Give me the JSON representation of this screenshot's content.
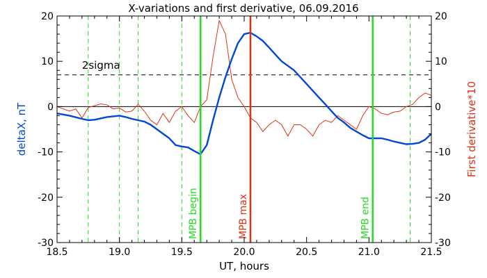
{
  "chart_data": {
    "type": "line",
    "title": "X-variations and first derivative, 06.09.2016",
    "xlabel": "UT, hours",
    "ylabel_left": "deltaX, nT",
    "ylabel_right": "First derivative*10",
    "xlim": [
      18.5,
      21.5
    ],
    "ylim": [
      -30,
      20
    ],
    "x_ticks": [
      "18.5",
      "19.0",
      "19.5",
      "20.0",
      "20.5",
      "21.0",
      "21.5"
    ],
    "x_tick_values": [
      18.5,
      19.0,
      19.5,
      20.0,
      20.5,
      21.0,
      21.5
    ],
    "y_ticks": [
      "20",
      "10",
      "0",
      "-10",
      "-20",
      "-30"
    ],
    "y_tick_values": [
      20,
      10,
      0,
      -10,
      -20,
      -30
    ],
    "sigma_label": "2sigma",
    "sigma_level": 7,
    "zero_level": 0,
    "colors": {
      "deltaX": "#0047d6",
      "derivative": "#e03010",
      "mpb": "#22dd22",
      "mpb_max": "#e03010",
      "dashed_green": "#22dd22",
      "text_blue": "#0047d6",
      "text_red": "#e03010"
    },
    "series": [
      {
        "name": "deltaX, nT",
        "x": [
          18.5,
          18.6,
          18.7,
          18.75,
          18.8,
          18.9,
          19.0,
          19.05,
          19.1,
          19.15,
          19.2,
          19.25,
          19.3,
          19.35,
          19.4,
          19.45,
          19.5,
          19.55,
          19.6,
          19.65,
          19.7,
          19.75,
          19.8,
          19.85,
          19.9,
          19.95,
          20.0,
          20.05,
          20.1,
          20.15,
          20.2,
          20.25,
          20.3,
          20.35,
          20.4,
          20.45,
          20.5,
          20.55,
          20.6,
          20.65,
          20.7,
          20.75,
          20.8,
          20.85,
          20.9,
          20.95,
          21.0,
          21.05,
          21.1,
          21.15,
          21.2,
          21.25,
          21.3,
          21.35,
          21.4,
          21.45,
          21.5
        ],
        "values": [
          -1.5,
          -2,
          -2.7,
          -3,
          -2.9,
          -2.3,
          -2,
          -2.3,
          -2.7,
          -3,
          -3.3,
          -4,
          -5,
          -6,
          -7,
          -8.5,
          -8.8,
          -9,
          -9.8,
          -10.5,
          -8.5,
          -3,
          2,
          6.5,
          10.5,
          14,
          16,
          16.3,
          15.5,
          14.5,
          13,
          11.5,
          10,
          9,
          8,
          6.5,
          5,
          3.5,
          2,
          0.5,
          -1,
          -2.5,
          -3.5,
          -4.7,
          -5.5,
          -6.3,
          -7,
          -7,
          -7,
          -7.3,
          -7.7,
          -8,
          -8.3,
          -8.2,
          -8,
          -7.3,
          -6
        ]
      },
      {
        "name": "First derivative*10",
        "x": [
          18.5,
          18.55,
          18.6,
          18.65,
          18.7,
          18.75,
          18.8,
          18.85,
          18.9,
          18.95,
          19.0,
          19.05,
          19.1,
          19.15,
          19.2,
          19.25,
          19.3,
          19.35,
          19.4,
          19.45,
          19.5,
          19.55,
          19.6,
          19.65,
          19.7,
          19.75,
          19.8,
          19.85,
          19.9,
          19.95,
          20.0,
          20.05,
          20.1,
          20.15,
          20.2,
          20.25,
          20.3,
          20.35,
          20.4,
          20.45,
          20.5,
          20.55,
          20.6,
          20.65,
          20.7,
          20.75,
          20.8,
          20.85,
          20.9,
          20.95,
          21.0,
          21.05,
          21.1,
          21.15,
          21.2,
          21.25,
          21.3,
          21.35,
          21.4,
          21.45,
          21.5
        ],
        "values": [
          0,
          -0.5,
          -1,
          -0.5,
          -2.5,
          -0.2,
          0.2,
          0.6,
          0.4,
          -0.5,
          -0.3,
          -1.2,
          -1,
          0.5,
          -1,
          -3,
          -4,
          -1.5,
          -3.5,
          -1,
          0,
          -2,
          -3.5,
          0,
          1.5,
          11,
          19,
          16,
          6,
          2,
          0,
          -2.5,
          -3.5,
          -5.5,
          -4,
          -3,
          -4,
          -6.5,
          -4,
          -4,
          -5,
          -6.5,
          -4,
          -3,
          -3.5,
          -2,
          -3,
          -4,
          -5,
          -2,
          0,
          -0.5,
          -1.5,
          -1.8,
          -1.2,
          -1,
          0,
          0.5,
          2,
          3,
          2.5
        ]
      }
    ],
    "markers": [
      {
        "label": "MPB begin",
        "x": 19.65,
        "style": "solid",
        "color": "mpb"
      },
      {
        "label": "MPB max",
        "x": 20.05,
        "style": "solid",
        "color": "mpb_max"
      },
      {
        "label": "MPB end",
        "x": 21.03,
        "style": "solid",
        "color": "mpb"
      }
    ],
    "dashed_markers": [
      18.75,
      19.0,
      19.15,
      19.5,
      21.33
    ],
    "grid": false,
    "legend": "none"
  }
}
